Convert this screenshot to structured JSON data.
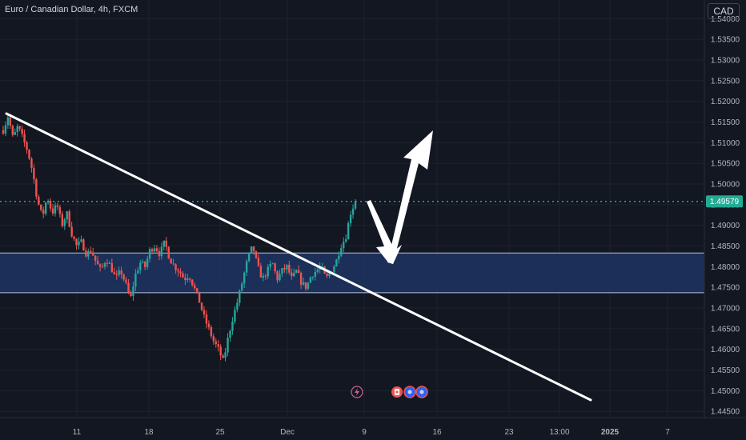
{
  "header": {
    "title": "Euro / Canadian Dollar, 4h, FXCM",
    "currency": "CAD"
  },
  "colors": {
    "background": "#131722",
    "grid": "#1e222d",
    "up": "#26a69a",
    "down": "#ef5350",
    "zone_fill": "#1d3461",
    "zone_border": "#b8c4e0",
    "trendline": "#ffffff",
    "last_price": "#22ab94"
  },
  "icons": [
    "lightning-icon",
    "canada-flag-icon",
    "globe-icon",
    "globe-icon"
  ],
  "chart_data": {
    "type": "candlestick",
    "symbol": "EURCAD",
    "timeframe": "4h",
    "ylim": [
      1.4435,
      1.5445
    ],
    "y_ticks": [
      "1.54000",
      "1.53500",
      "1.53000",
      "1.52500",
      "1.52000",
      "1.51500",
      "1.51000",
      "1.50500",
      "1.50000",
      "1.49500",
      "1.49000",
      "1.48500",
      "1.48000",
      "1.47500",
      "1.47000",
      "1.46500",
      "1.46000",
      "1.45500",
      "1.45000",
      "1.44500"
    ],
    "x_ticks": [
      "11",
      "18",
      "25",
      "Dec",
      "9",
      "16",
      "23",
      "13:00",
      "2025",
      "7"
    ],
    "last_price": "1.49579",
    "zone": {
      "low": 1.4737,
      "high": 1.4833
    },
    "path": [
      1.513,
      1.5165,
      1.511,
      1.514,
      1.511,
      1.508,
      1.503,
      1.496,
      1.492,
      1.497,
      1.493,
      1.495,
      1.49,
      1.493,
      1.488,
      1.485,
      1.486,
      1.483,
      1.484,
      1.481,
      1.479,
      1.482,
      1.48,
      1.477,
      1.479,
      1.476,
      1.472,
      1.478,
      1.481,
      1.48,
      1.484,
      1.485,
      1.483,
      1.486,
      1.482,
      1.48,
      1.479,
      1.477,
      1.478,
      1.475,
      1.472,
      1.468,
      1.465,
      1.462,
      1.46,
      1.457,
      1.463,
      1.468,
      1.472,
      1.477,
      1.482,
      1.485,
      1.48,
      1.477,
      1.479,
      1.481,
      1.477,
      1.479,
      1.48,
      1.477,
      1.479,
      1.476,
      1.475,
      1.478,
      1.479,
      1.48,
      1.477,
      1.479,
      1.481,
      1.485,
      1.487,
      1.493,
      1.4958
    ]
  }
}
